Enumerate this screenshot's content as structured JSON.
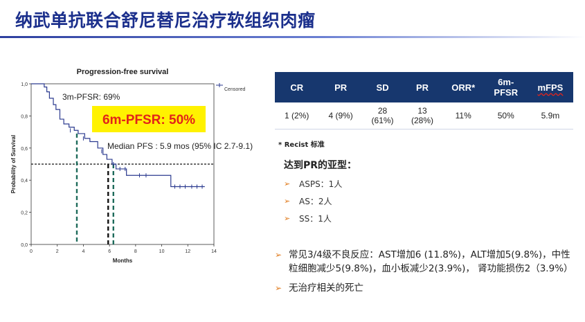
{
  "title": "纳武单抗联合舒尼替尼治疗软组织肉瘤",
  "chart_data": {
    "type": "line",
    "title": "Progression-free survival",
    "xlabel": "Months",
    "ylabel": "Probability of Survival",
    "xlim": [
      0,
      14
    ],
    "ylim": [
      0,
      1.0
    ],
    "x_ticks": [
      "0",
      "2",
      "4",
      "6",
      "8",
      "10",
      "12",
      "14"
    ],
    "y_ticks": [
      "0,0",
      "0,2",
      "0,4",
      "0,6",
      "0,8",
      "1,0"
    ],
    "legend": "Censored",
    "legend_position": "top-right",
    "series": [
      {
        "steps": [
          [
            0,
            1.0
          ],
          [
            1.0,
            0.98
          ],
          [
            1.2,
            0.95
          ],
          [
            1.4,
            0.91
          ],
          [
            1.7,
            0.87
          ],
          [
            1.9,
            0.84
          ],
          [
            2.2,
            0.78
          ],
          [
            2.5,
            0.75
          ],
          [
            2.9,
            0.73
          ],
          [
            3.3,
            0.71
          ],
          [
            3.6,
            0.69
          ],
          [
            4.1,
            0.66
          ],
          [
            4.5,
            0.64
          ],
          [
            5.1,
            0.6
          ],
          [
            5.5,
            0.56
          ],
          [
            5.8,
            0.53
          ],
          [
            6.2,
            0.5
          ],
          [
            6.5,
            0.47
          ],
          [
            7.3,
            0.43
          ],
          [
            10.7,
            0.36
          ],
          [
            13.3,
            0.36
          ]
        ],
        "censored": [
          [
            3.0,
            0.71
          ],
          [
            4.0,
            0.66
          ],
          [
            5.4,
            0.58
          ],
          [
            6.3,
            0.5
          ],
          [
            6.8,
            0.47
          ],
          [
            7.2,
            0.47
          ],
          [
            8.3,
            0.43
          ],
          [
            8.8,
            0.43
          ],
          [
            11.0,
            0.36
          ],
          [
            11.4,
            0.36
          ],
          [
            11.8,
            0.36
          ],
          [
            12.3,
            0.36
          ],
          [
            12.7,
            0.36
          ],
          [
            13.1,
            0.36
          ]
        ]
      }
    ],
    "reference_y": 0.5,
    "vertical_markers": [
      3.5,
      5.9,
      6.3
    ],
    "annotations": {
      "pfs3": "3m-PFSR: 69%",
      "pfs6": "6m-PFSR: 50%",
      "median": "Median PFS : 5.9 mos (95% IC 2.7-9.1)"
    },
    "colors": {
      "marker": "#1e6b5b",
      "highlight": "#fff200",
      "highlight_text": "#e2231a",
      "curve": "#2b3a8f"
    }
  },
  "table": {
    "headers": [
      "CR",
      "PR",
      "SD",
      "PR",
      "ORR*",
      "6m-PFSR",
      "mFPS"
    ],
    "row": [
      "1 (2%)",
      "4 (9%)",
      "28 (61%)",
      "13 (28%)",
      "11%",
      "50%",
      "5.9m"
    ],
    "header_color": "#17376e"
  },
  "footnote": "* Recist 标准",
  "pr_subtypes": {
    "heading": "达到PR的亚型：",
    "items": [
      "ASPS：1人",
      "AS：2人",
      "SS：1人"
    ]
  },
  "notes": [
    "常见3/4级不良反应：AST增加6 (11.8%)，ALT增加5(9.8%)，中性粒细胞减少5(9.8%)，血小板减少2(3.9%)， 肾功能损伤2（3.9%）",
    "无治疗相关的死亡"
  ],
  "bullet_glyph": "➢"
}
